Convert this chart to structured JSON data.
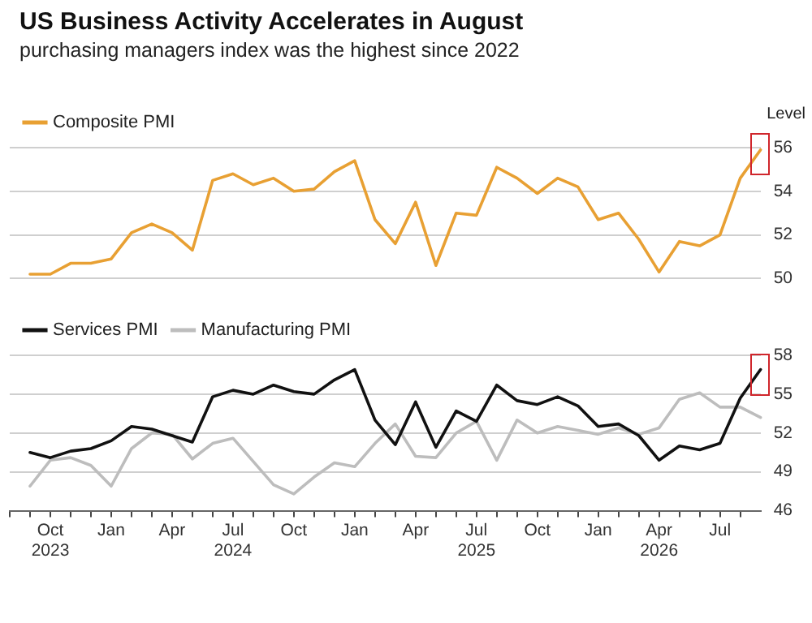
{
  "chart_data": [
    {
      "type": "line",
      "title": "US Business Activity Accelerates in August",
      "subtitle": "purchasing managers index was the highest since 2022",
      "ylabel": "Level",
      "legend": "top left",
      "grid": "y",
      "tick_labels": "y",
      "marker": "none",
      "x": [
        "2023-09",
        "2023-10",
        "2023-11",
        "2023-12",
        "2024-01",
        "2024-02",
        "2024-03",
        "2024-04",
        "2024-05",
        "2024-06",
        "2024-07",
        "2024-08",
        "2024-09",
        "2024-10",
        "2024-11",
        "2024-12",
        "2025-01",
        "2025-02",
        "2025-03",
        "2025-04",
        "2025-05",
        "2025-06",
        "2025-07",
        "2025-08",
        "2025-09",
        "2025-10",
        "2025-11",
        "2025-12",
        "2026-01",
        "2026-02",
        "2026-03",
        "2026-04",
        "2026-05",
        "2026-06",
        "2026-07",
        "2026-08",
        "2026-09"
      ],
      "xlim": [
        "2023-08",
        "2026-09"
      ],
      "ylim": [
        50,
        56
      ],
      "yticks": [
        50,
        52,
        54,
        56
      ],
      "series": [
        {
          "name": "Composite PMI",
          "color": "#e8a033",
          "values": [
            50.2,
            50.2,
            50.7,
            50.7,
            50.9,
            52.1,
            52.5,
            52.1,
            51.3,
            54.5,
            54.8,
            54.3,
            54.6,
            54.0,
            54.1,
            54.9,
            55.4,
            52.7,
            51.6,
            53.5,
            50.6,
            53.0,
            52.9,
            55.1,
            54.6,
            53.9,
            54.6,
            54.2,
            52.7,
            53.0,
            51.8,
            50.3,
            51.7,
            51.5,
            52.0,
            54.6,
            55.9
          ]
        }
      ]
    },
    {
      "type": "line",
      "legend": "top left",
      "grid": "y",
      "marker": "none",
      "x": [
        "2023-09",
        "2023-10",
        "2023-11",
        "2023-12",
        "2024-01",
        "2024-02",
        "2024-03",
        "2024-04",
        "2024-05",
        "2024-06",
        "2024-07",
        "2024-08",
        "2024-09",
        "2024-10",
        "2024-11",
        "2024-12",
        "2025-01",
        "2025-02",
        "2025-03",
        "2025-04",
        "2025-05",
        "2025-06",
        "2025-07",
        "2025-08",
        "2025-09",
        "2025-10",
        "2025-11",
        "2025-12",
        "2026-01",
        "2026-02",
        "2026-03",
        "2026-04",
        "2026-05",
        "2026-06",
        "2026-07",
        "2026-08",
        "2026-09"
      ],
      "xlim": [
        "2023-08",
        "2026-09"
      ],
      "ylim": [
        46,
        58
      ],
      "yticks": [
        46,
        49,
        52,
        55,
        58
      ],
      "xticks": [
        {
          "value": "2023-08",
          "label": null
        },
        {
          "value": "2023-09",
          "label": null
        },
        {
          "value": "2023-10",
          "label": "Oct\n2023"
        },
        {
          "value": "2023-11",
          "label": null
        },
        {
          "value": "2023-12",
          "label": null
        },
        {
          "value": "2024-01",
          "label": "Jan"
        },
        {
          "value": "2024-02",
          "label": null
        },
        {
          "value": "2024-03",
          "label": null
        },
        {
          "value": "2024-04",
          "label": "Apr"
        },
        {
          "value": "2024-05",
          "label": null
        },
        {
          "value": "2024-06",
          "label": null
        },
        {
          "value": "2024-07",
          "label": "Jul\n2024"
        },
        {
          "value": "2024-08",
          "label": null
        },
        {
          "value": "2024-09",
          "label": null
        },
        {
          "value": "2024-10",
          "label": "Oct"
        },
        {
          "value": "2024-11",
          "label": null
        },
        {
          "value": "2024-12",
          "label": null
        },
        {
          "value": "2025-01",
          "label": "Jan"
        },
        {
          "value": "2025-02",
          "label": null
        },
        {
          "value": "2025-03",
          "label": null
        },
        {
          "value": "2025-04",
          "label": "Apr"
        },
        {
          "value": "2025-05",
          "label": null
        },
        {
          "value": "2025-06",
          "label": null
        },
        {
          "value": "2025-07",
          "label": "Jul\n2025"
        },
        {
          "value": "2025-08",
          "label": null
        },
        {
          "value": "2025-09",
          "label": null
        },
        {
          "value": "2025-10",
          "label": "Oct"
        },
        {
          "value": "2025-11",
          "label": null
        },
        {
          "value": "2025-12",
          "label": null
        },
        {
          "value": "2026-01",
          "label": "Jan"
        },
        {
          "value": "2026-02",
          "label": null
        },
        {
          "value": "2026-03",
          "label": null
        },
        {
          "value": "2026-04",
          "label": "Apr\n2026"
        },
        {
          "value": "2026-05",
          "label": null
        },
        {
          "value": "2026-06",
          "label": null
        },
        {
          "value": "2026-07",
          "label": "Jul"
        },
        {
          "value": "2026-08",
          "label": null
        }
      ],
      "series": [
        {
          "name": "Services PMI",
          "color": "#111111",
          "values": [
            50.5,
            50.1,
            50.6,
            50.8,
            51.4,
            52.5,
            52.3,
            51.8,
            51.3,
            54.8,
            55.3,
            55.0,
            55.7,
            55.2,
            55.0,
            56.1,
            56.9,
            53.0,
            51.1,
            54.4,
            50.9,
            53.7,
            52.9,
            55.7,
            54.5,
            54.2,
            54.8,
            54.1,
            52.5,
            52.7,
            51.8,
            49.9,
            51.0,
            50.7,
            51.2,
            54.7,
            56.9
          ]
        },
        {
          "name": "Manufacturing PMI",
          "color": "#bdbdbd",
          "values": [
            47.9,
            49.9,
            50.1,
            49.5,
            47.9,
            50.8,
            52.0,
            51.9,
            50.0,
            51.2,
            51.6,
            49.8,
            48.0,
            47.3,
            48.6,
            49.7,
            49.4,
            51.2,
            52.7,
            50.2,
            50.1,
            52.0,
            52.9,
            49.9,
            53.0,
            52.0,
            52.5,
            52.2,
            51.9,
            52.4,
            51.9,
            52.4,
            54.6,
            55.1,
            54.0,
            54.0,
            53.2
          ]
        }
      ]
    }
  ]
}
